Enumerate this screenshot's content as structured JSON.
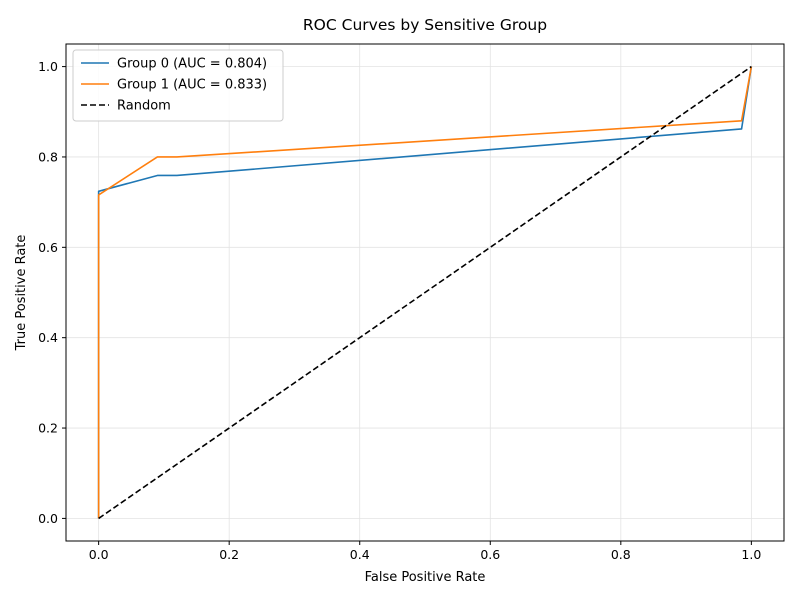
{
  "chart_data": {
    "type": "line",
    "title": "ROC Curves by Sensitive Group",
    "xlabel": "False Positive Rate",
    "ylabel": "True Positive Rate",
    "xlim": [
      -0.05,
      1.05
    ],
    "ylim": [
      -0.05,
      1.05
    ],
    "xticks": [
      0.0,
      0.2,
      0.4,
      0.6,
      0.8,
      1.0
    ],
    "yticks": [
      0.0,
      0.2,
      0.4,
      0.6,
      0.8,
      1.0
    ],
    "xtick_labels": [
      "0.0",
      "0.2",
      "0.4",
      "0.6",
      "0.8",
      "1.0"
    ],
    "ytick_labels": [
      "0.0",
      "0.2",
      "0.4",
      "0.6",
      "0.8",
      "1.0"
    ],
    "grid": true,
    "legend_position": "top-left",
    "series": [
      {
        "name": "Group 0 (AUC = 0.804)",
        "color": "#1f77b4",
        "style": "solid",
        "x": [
          0.0,
          0.0,
          0.09,
          0.12,
          0.985,
          1.0
        ],
        "y": [
          0.0,
          0.724,
          0.759,
          0.759,
          0.862,
          1.0
        ]
      },
      {
        "name": "Group 1 (AUC = 0.833)",
        "color": "#ff7f0e",
        "style": "solid",
        "x": [
          0.0,
          0.0,
          0.09,
          0.12,
          0.985,
          1.0
        ],
        "y": [
          0.0,
          0.716,
          0.8,
          0.8,
          0.88,
          1.0
        ]
      },
      {
        "name": "Random",
        "color": "#000000",
        "style": "dashed",
        "x": [
          0.0,
          1.0
        ],
        "y": [
          0.0,
          1.0
        ]
      }
    ]
  }
}
